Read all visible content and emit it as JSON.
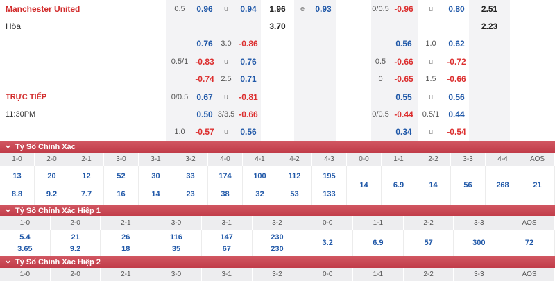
{
  "colors": {
    "section_bar": "#c64450",
    "odds_positive": "#2058a8",
    "odds_negative": "#dc2f2f",
    "team_red": "#d22c2c",
    "stripe_gray": "#f3f3f5"
  },
  "top": {
    "team": "Manchester United",
    "draw": "Hòa",
    "live": "TRỰC TIẾP",
    "time": "11:30PM",
    "cells": [
      {
        "r": 1,
        "c": 2,
        "t": "0.5",
        "k": "hdp",
        "i": false
      },
      {
        "r": 1,
        "c": 3,
        "t": "0.96",
        "k": "pos",
        "i": true
      },
      {
        "r": 1,
        "c": 4,
        "t": "u",
        "k": "mk",
        "i": false
      },
      {
        "r": 1,
        "c": 5,
        "t": "0.94",
        "k": "pos",
        "i": true
      },
      {
        "r": 1,
        "c": 6,
        "t": "1.96",
        "k": "big",
        "i": true
      },
      {
        "r": 1,
        "c": 7,
        "t": "e",
        "k": "mk",
        "i": false
      },
      {
        "r": 1,
        "c": 8,
        "t": "0.93",
        "k": "pos",
        "i": true
      },
      {
        "r": 1,
        "c": 10,
        "t": "0/0.5",
        "k": "hdp",
        "i": false
      },
      {
        "r": 1,
        "c": 11,
        "t": "-0.96",
        "k": "neg",
        "i": true
      },
      {
        "r": 1,
        "c": 12,
        "t": "u",
        "k": "mk",
        "i": false
      },
      {
        "r": 1,
        "c": 13,
        "t": "0.80",
        "k": "pos",
        "i": true
      },
      {
        "r": 1,
        "c": 14,
        "t": "2.51",
        "k": "big",
        "i": true
      },
      {
        "r": 2,
        "c": 6,
        "t": "3.70",
        "k": "big",
        "i": true
      },
      {
        "r": 2,
        "c": 14,
        "t": "2.23",
        "k": "big",
        "i": true
      },
      {
        "r": 3,
        "c": 3,
        "t": "0.76",
        "k": "pos",
        "i": true
      },
      {
        "r": 3,
        "c": 4,
        "t": "3.0",
        "k": "hdp",
        "i": false
      },
      {
        "r": 3,
        "c": 5,
        "t": "-0.86",
        "k": "neg",
        "i": true
      },
      {
        "r": 3,
        "c": 11,
        "t": "0.56",
        "k": "pos",
        "i": true
      },
      {
        "r": 3,
        "c": 12,
        "t": "1.0",
        "k": "hdp",
        "i": false
      },
      {
        "r": 3,
        "c": 13,
        "t": "0.62",
        "k": "pos",
        "i": true
      },
      {
        "r": 4,
        "c": 2,
        "t": "0.5/1",
        "k": "hdp",
        "i": false
      },
      {
        "r": 4,
        "c": 3,
        "t": "-0.83",
        "k": "neg",
        "i": true
      },
      {
        "r": 4,
        "c": 4,
        "t": "u",
        "k": "mk",
        "i": false
      },
      {
        "r": 4,
        "c": 5,
        "t": "0.76",
        "k": "pos",
        "i": true
      },
      {
        "r": 4,
        "c": 10,
        "t": "0.5",
        "k": "hdp",
        "i": false
      },
      {
        "r": 4,
        "c": 11,
        "t": "-0.66",
        "k": "neg",
        "i": true
      },
      {
        "r": 4,
        "c": 12,
        "t": "u",
        "k": "mk",
        "i": false
      },
      {
        "r": 4,
        "c": 13,
        "t": "-0.72",
        "k": "neg",
        "i": true
      },
      {
        "r": 5,
        "c": 3,
        "t": "-0.74",
        "k": "neg",
        "i": true
      },
      {
        "r": 5,
        "c": 4,
        "t": "2.5",
        "k": "hdp",
        "i": false
      },
      {
        "r": 5,
        "c": 5,
        "t": "0.71",
        "k": "pos",
        "i": true
      },
      {
        "r": 5,
        "c": 10,
        "t": "0",
        "k": "hdp",
        "i": false
      },
      {
        "r": 5,
        "c": 11,
        "t": "-0.65",
        "k": "neg",
        "i": true
      },
      {
        "r": 5,
        "c": 12,
        "t": "1.5",
        "k": "hdp",
        "i": false
      },
      {
        "r": 5,
        "c": 13,
        "t": "-0.66",
        "k": "neg",
        "i": true
      },
      {
        "r": 6,
        "c": 2,
        "t": "0/0.5",
        "k": "hdp",
        "i": false
      },
      {
        "r": 6,
        "c": 3,
        "t": "0.67",
        "k": "pos",
        "i": true
      },
      {
        "r": 6,
        "c": 4,
        "t": "u",
        "k": "mk",
        "i": false
      },
      {
        "r": 6,
        "c": 5,
        "t": "-0.81",
        "k": "neg",
        "i": true
      },
      {
        "r": 6,
        "c": 11,
        "t": "0.55",
        "k": "pos",
        "i": true
      },
      {
        "r": 6,
        "c": 12,
        "t": "u",
        "k": "mk",
        "i": false
      },
      {
        "r": 6,
        "c": 13,
        "t": "0.56",
        "k": "pos",
        "i": true
      },
      {
        "r": 7,
        "c": 3,
        "t": "0.50",
        "k": "pos",
        "i": true
      },
      {
        "r": 7,
        "c": 4,
        "t": "3/3.5",
        "k": "hdp",
        "i": false
      },
      {
        "r": 7,
        "c": 5,
        "t": "-0.66",
        "k": "neg",
        "i": true
      },
      {
        "r": 7,
        "c": 10,
        "t": "0/0.5",
        "k": "hdp",
        "i": false
      },
      {
        "r": 7,
        "c": 11,
        "t": "-0.44",
        "k": "neg",
        "i": true
      },
      {
        "r": 7,
        "c": 12,
        "t": "0.5/1",
        "k": "hdp",
        "i": false
      },
      {
        "r": 7,
        "c": 13,
        "t": "0.44",
        "k": "pos",
        "i": true
      },
      {
        "r": 8,
        "c": 2,
        "t": "1.0",
        "k": "hdp",
        "i": false
      },
      {
        "r": 8,
        "c": 3,
        "t": "-0.57",
        "k": "neg",
        "i": true
      },
      {
        "r": 8,
        "c": 4,
        "t": "u",
        "k": "mk",
        "i": false
      },
      {
        "r": 8,
        "c": 5,
        "t": "0.56",
        "k": "pos",
        "i": true
      },
      {
        "r": 8,
        "c": 11,
        "t": "0.34",
        "k": "pos",
        "i": true
      },
      {
        "r": 8,
        "c": 12,
        "t": "u",
        "k": "mk",
        "i": false
      },
      {
        "r": 8,
        "c": 13,
        "t": "-0.54",
        "k": "neg",
        "i": true
      }
    ]
  },
  "sections": [
    {
      "title": "Tỷ Số Chính Xác",
      "columns": [
        "1-0",
        "2-0",
        "2-1",
        "3-0",
        "3-1",
        "3-2",
        "4-0",
        "4-1",
        "4-2",
        "4-3",
        "0-0",
        "1-1",
        "2-2",
        "3-3",
        "4-4",
        "AOS"
      ],
      "pairs": [
        [
          "13",
          "8.8"
        ],
        [
          "20",
          "9.2"
        ],
        [
          "12",
          "7.7"
        ],
        [
          "52",
          "16"
        ],
        [
          "30",
          "14"
        ],
        [
          "33",
          "23"
        ],
        [
          "174",
          "38"
        ],
        [
          "100",
          "32"
        ],
        [
          "112",
          "53"
        ],
        [
          "195",
          "133"
        ]
      ],
      "singles": [
        "14",
        "6.9",
        "14",
        "56",
        "268",
        "21"
      ]
    },
    {
      "title": "Tỷ Số Chính Xác Hiệp 1",
      "columns": [
        "1-0",
        "2-0",
        "2-1",
        "3-0",
        "3-1",
        "3-2",
        "0-0",
        "1-1",
        "2-2",
        "3-3",
        "AOS"
      ],
      "pairs": [
        [
          "5.4",
          "3.65"
        ],
        [
          "21",
          "9.2"
        ],
        [
          "26",
          "18"
        ],
        [
          "116",
          "35"
        ],
        [
          "147",
          "67"
        ],
        [
          "230",
          "230"
        ]
      ],
      "singles": [
        "3.2",
        "6.9",
        "57",
        "300",
        "72"
      ]
    },
    {
      "title": "Tỷ Số Chính Xác Hiệp 2",
      "columns": [
        "1-0",
        "2-0",
        "2-1",
        "3-0",
        "3-1",
        "3-2",
        "0-0",
        "1-1",
        "2-2",
        "3-3",
        "AOS"
      ],
      "pairs": [],
      "singles": []
    }
  ]
}
